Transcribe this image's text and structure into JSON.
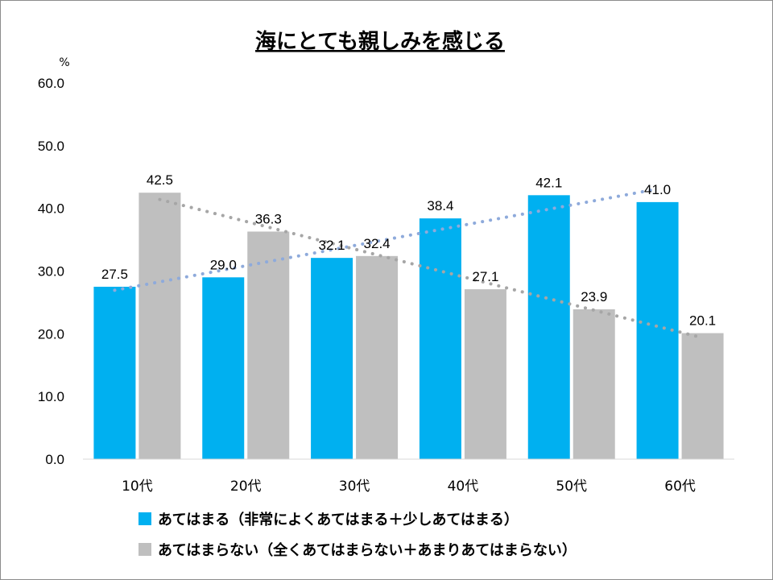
{
  "chart_data": {
    "type": "bar",
    "title": "海にとても親しみを感じる",
    "unit": "%",
    "categories": [
      "10代",
      "20代",
      "30代",
      "40代",
      "50代",
      "60代"
    ],
    "series": [
      {
        "name": "あてはまる（非常によくあてはまる＋少しあてはまる）",
        "values": [
          27.5,
          29.0,
          32.1,
          38.4,
          42.1,
          41.0
        ],
        "color": "#00b0f0"
      },
      {
        "name": "あてはまらない（全くあてはまらない＋あまりあてはまらない）",
        "values": [
          42.5,
          36.3,
          32.4,
          27.1,
          23.9,
          20.1
        ],
        "color": "#bfbfbf"
      }
    ],
    "value_labels": [
      [
        "27.5",
        "29.0",
        "32.1",
        "38.4",
        "42.1",
        "41.0"
      ],
      [
        "42.5",
        "36.3",
        "32.4",
        "27.1",
        "23.9",
        "20.1"
      ]
    ],
    "y_ticks": [
      "0.0",
      "10.0",
      "20.0",
      "30.0",
      "40.0",
      "50.0",
      "60.0"
    ],
    "ylim": [
      0,
      60
    ],
    "trendlines": [
      {
        "series": 0,
        "kind": "linear",
        "style": "dotted",
        "color": "#8eaadb"
      },
      {
        "series": 1,
        "kind": "linear",
        "style": "dotted",
        "color": "#a6a6a6"
      }
    ],
    "grid": false,
    "legend_position": "bottom"
  }
}
